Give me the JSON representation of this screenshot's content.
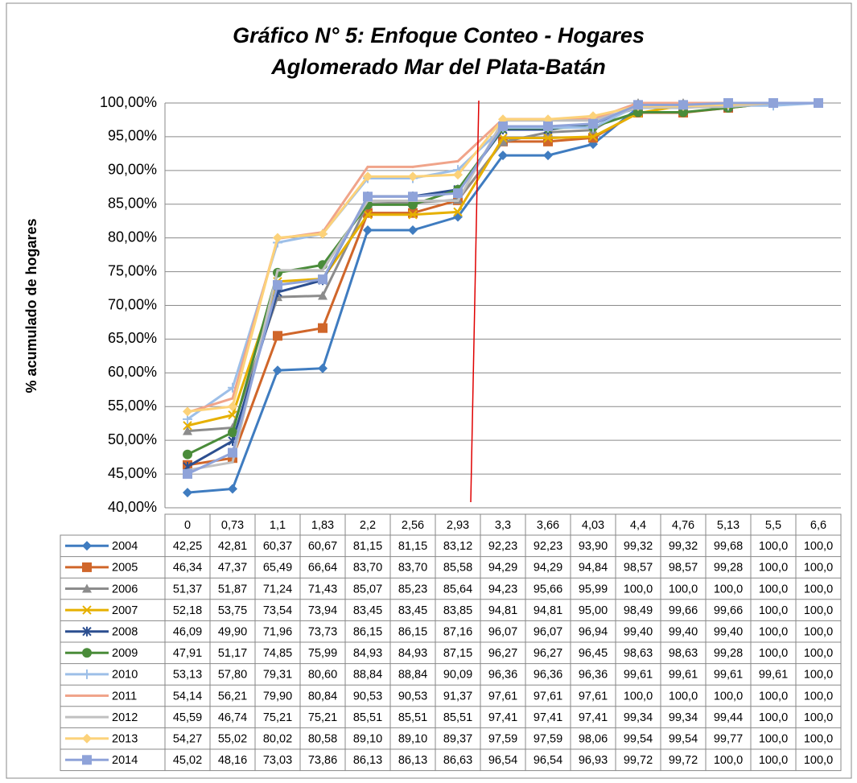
{
  "chart_data": {
    "type": "line",
    "title": "Gráfico N° 5: Enfoque Conteo - Hogares",
    "subtitle": "Aglomerado Mar del Plata-Batán",
    "y_label": "% acumulado de hogares",
    "categories": [
      "0",
      "0,73",
      "1,1",
      "1,83",
      "2,2",
      "2,56",
      "2,93",
      "3,3",
      "3,66",
      "4,03",
      "4,4",
      "4,76",
      "5,13",
      "5,5",
      "6,6"
    ],
    "ylim": [
      40,
      100
    ],
    "yticks": [
      {
        "value": 40,
        "label": "40,00%"
      },
      {
        "value": 45,
        "label": "45,00%"
      },
      {
        "value": 50,
        "label": "50,00%"
      },
      {
        "value": 55,
        "label": "55,00%"
      },
      {
        "value": 60,
        "label": "60,00%"
      },
      {
        "value": 65,
        "label": "65,00%"
      },
      {
        "value": 70,
        "label": "70,00%"
      },
      {
        "value": 75,
        "label": "75,00%"
      },
      {
        "value": 80,
        "label": "80,00%"
      },
      {
        "value": 85,
        "label": "85,00%"
      },
      {
        "value": 90,
        "label": "90,00%"
      },
      {
        "value": 95,
        "label": "95,00%"
      },
      {
        "value": 100,
        "label": "100,00%"
      }
    ],
    "grid": true,
    "series": [
      {
        "name": "2004",
        "color": "#3f7cc0",
        "marker": "diamond",
        "values": [
          42.25,
          42.81,
          60.37,
          60.67,
          81.15,
          81.15,
          83.12,
          92.23,
          92.23,
          93.9,
          99.32,
          99.32,
          99.68,
          100,
          100
        ],
        "value_labels": [
          "42,25",
          "42,81",
          "60,37",
          "60,67",
          "81,15",
          "81,15",
          "83,12",
          "92,23",
          "92,23",
          "93,90",
          "99,32",
          "99,32",
          "99,68",
          "100,0",
          "100,0"
        ]
      },
      {
        "name": "2005",
        "color": "#d0662a",
        "marker": "square",
        "values": [
          46.34,
          47.37,
          65.49,
          66.64,
          83.7,
          83.7,
          85.58,
          94.29,
          94.29,
          94.84,
          98.57,
          98.57,
          99.28,
          100,
          100
        ],
        "value_labels": [
          "46,34",
          "47,37",
          "65,49",
          "66,64",
          "83,70",
          "83,70",
          "85,58",
          "94,29",
          "94,29",
          "94,84",
          "98,57",
          "98,57",
          "99,28",
          "100,0",
          "100,0"
        ]
      },
      {
        "name": "2006",
        "color": "#8c8c8c",
        "marker": "triangle",
        "values": [
          51.37,
          51.87,
          71.24,
          71.43,
          85.07,
          85.23,
          85.64,
          94.23,
          95.66,
          95.99,
          100,
          100,
          100,
          100,
          100
        ],
        "value_labels": [
          "51,37",
          "51,87",
          "71,24",
          "71,43",
          "85,07",
          "85,23",
          "85,64",
          "94,23",
          "95,66",
          "95,99",
          "100,0",
          "100,0",
          "100,0",
          "100,0",
          "100,0"
        ]
      },
      {
        "name": "2007",
        "color": "#e6b000",
        "marker": "x",
        "values": [
          52.18,
          53.75,
          73.54,
          73.94,
          83.45,
          83.45,
          83.85,
          94.81,
          94.81,
          95.0,
          98.49,
          99.66,
          99.66,
          100,
          100
        ],
        "value_labels": [
          "52,18",
          "53,75",
          "73,54",
          "73,94",
          "83,45",
          "83,45",
          "83,85",
          "94,81",
          "94,81",
          "95,00",
          "98,49",
          "99,66",
          "99,66",
          "100,0",
          "100,0"
        ]
      },
      {
        "name": "2008",
        "color": "#2c4f90",
        "marker": "star",
        "values": [
          46.09,
          49.9,
          71.96,
          73.73,
          86.15,
          86.15,
          87.16,
          96.07,
          96.07,
          96.94,
          99.4,
          99.4,
          99.4,
          100,
          100
        ],
        "value_labels": [
          "46,09",
          "49,90",
          "71,96",
          "73,73",
          "86,15",
          "86,15",
          "87,16",
          "96,07",
          "96,07",
          "96,94",
          "99,40",
          "99,40",
          "99,40",
          "100,0",
          "100,0"
        ]
      },
      {
        "name": "2009",
        "color": "#4a8c3a",
        "marker": "circle",
        "values": [
          47.91,
          51.17,
          74.85,
          75.99,
          84.93,
          84.93,
          87.15,
          96.27,
          96.27,
          96.45,
          98.63,
          98.63,
          99.28,
          100,
          100
        ],
        "value_labels": [
          "47,91",
          "51,17",
          "74,85",
          "75,99",
          "84,93",
          "84,93",
          "87,15",
          "96,27",
          "96,27",
          "96,45",
          "98,63",
          "98,63",
          "99,28",
          "100,0",
          "100,0"
        ]
      },
      {
        "name": "2010",
        "color": "#9dbfe8",
        "marker": "plus",
        "values": [
          53.13,
          57.8,
          79.31,
          80.6,
          88.84,
          88.84,
          90.09,
          96.36,
          96.36,
          96.36,
          99.61,
          99.61,
          99.61,
          99.61,
          100
        ],
        "value_labels": [
          "53,13",
          "57,80",
          "79,31",
          "80,60",
          "88,84",
          "88,84",
          "90,09",
          "96,36",
          "96,36",
          "96,36",
          "99,61",
          "99,61",
          "99,61",
          "99,61",
          "100,0"
        ]
      },
      {
        "name": "2011",
        "color": "#f0a48a",
        "marker": "none",
        "values": [
          54.14,
          56.21,
          79.9,
          80.84,
          90.53,
          90.53,
          91.37,
          97.61,
          97.61,
          97.61,
          100,
          100,
          100,
          100,
          100
        ],
        "value_labels": [
          "54,14",
          "56,21",
          "79,90",
          "80,84",
          "90,53",
          "90,53",
          "91,37",
          "97,61",
          "97,61",
          "97,61",
          "100,0",
          "100,0",
          "100,0",
          "100,0",
          "100,0"
        ]
      },
      {
        "name": "2012",
        "color": "#c0c0c0",
        "marker": "none",
        "values": [
          45.59,
          46.74,
          75.21,
          75.21,
          85.51,
          85.51,
          85.51,
          97.41,
          97.41,
          97.41,
          99.34,
          99.34,
          99.44,
          100,
          100
        ],
        "value_labels": [
          "45,59",
          "46,74",
          "75,21",
          "75,21",
          "85,51",
          "85,51",
          "85,51",
          "97,41",
          "97,41",
          "97,41",
          "99,34",
          "99,34",
          "99,44",
          "100,0",
          "100,0"
        ]
      },
      {
        "name": "2013",
        "color": "#fcd27a",
        "marker": "diamond",
        "values": [
          54.27,
          55.02,
          80.02,
          80.58,
          89.1,
          89.1,
          89.37,
          97.59,
          97.59,
          98.06,
          99.54,
          99.54,
          99.77,
          100,
          100
        ],
        "value_labels": [
          "54,27",
          "55,02",
          "80,02",
          "80,58",
          "89,10",
          "89,10",
          "89,37",
          "97,59",
          "97,59",
          "98,06",
          "99,54",
          "99,54",
          "99,77",
          "100,0",
          "100,0"
        ]
      },
      {
        "name": "2014",
        "color": "#8fa3d9",
        "marker": "square",
        "values": [
          45.02,
          48.16,
          73.03,
          73.86,
          86.13,
          86.13,
          86.63,
          96.54,
          96.54,
          96.93,
          99.72,
          99.72,
          100,
          100,
          100
        ],
        "value_labels": [
          "45,02",
          "48,16",
          "73,03",
          "73,86",
          "86,13",
          "86,13",
          "86,63",
          "96,54",
          "96,54",
          "96,93",
          "99,72",
          "99,72",
          "100,0",
          "100,0",
          "100,0"
        ]
      }
    ]
  }
}
